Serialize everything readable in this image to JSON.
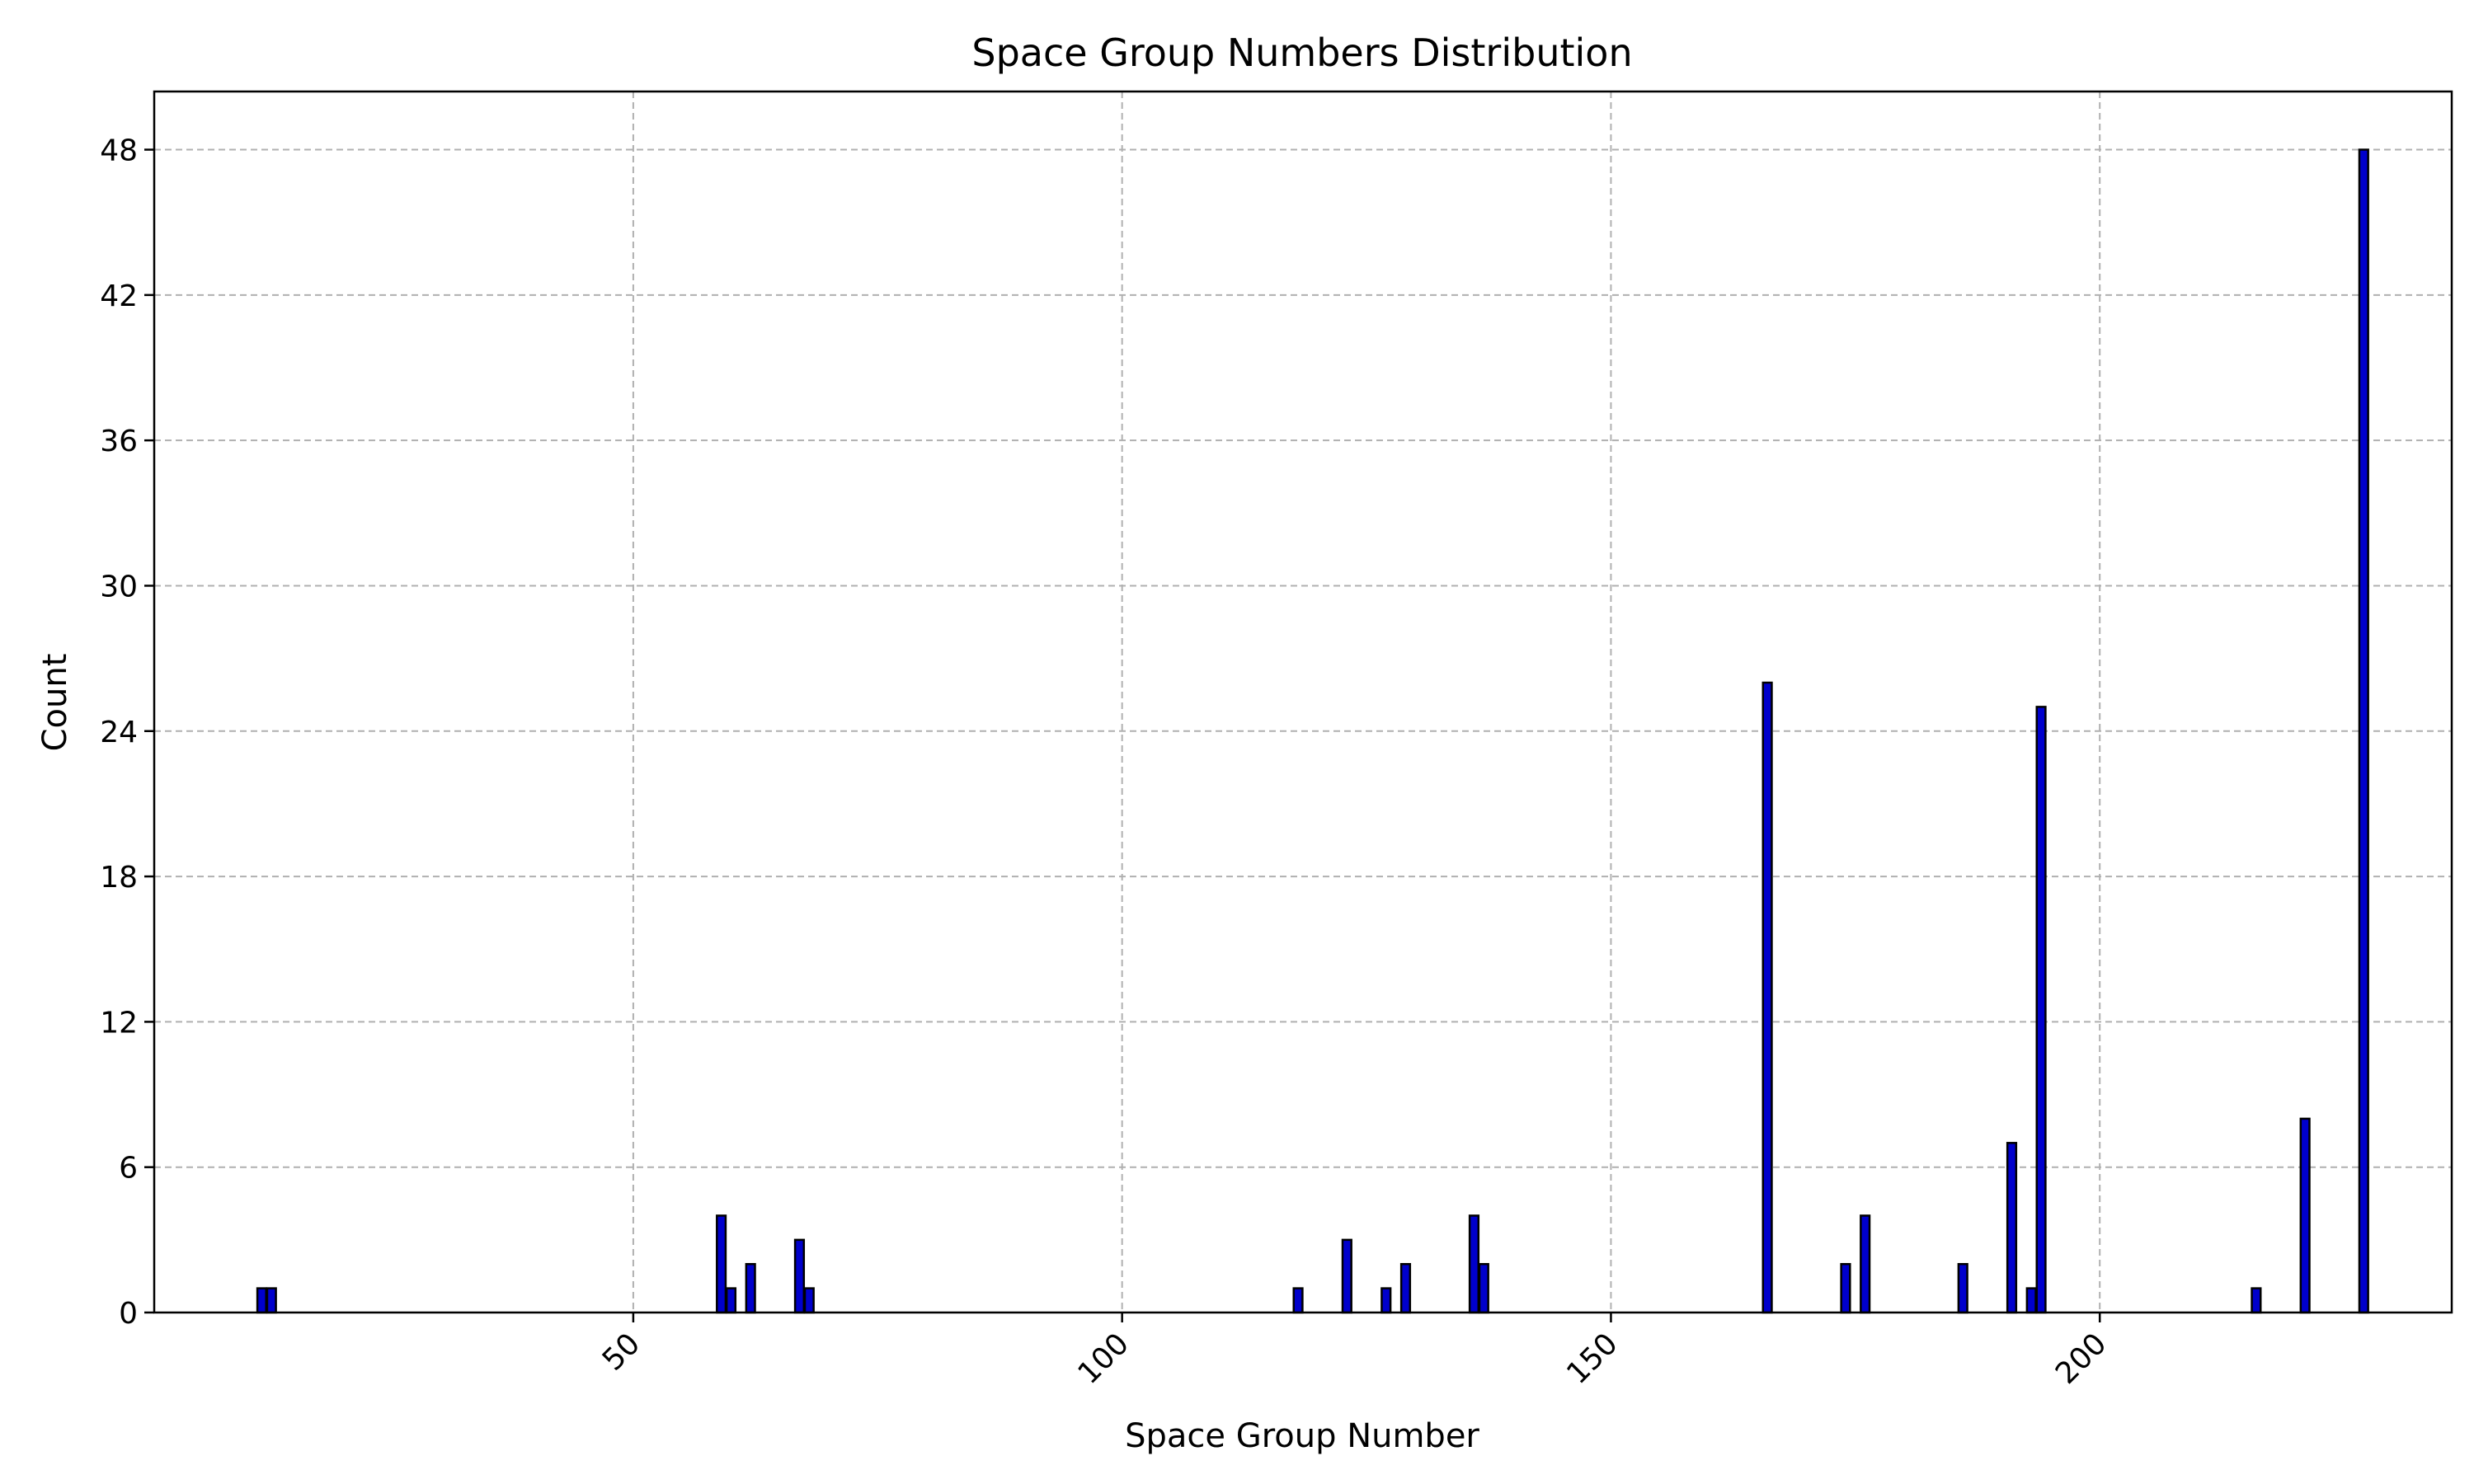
{
  "chart_data": {
    "type": "bar",
    "title": "Space Group Numbers Distribution",
    "xlabel": "Space Group Number",
    "ylabel": "Count",
    "xlim": [
      1,
      236
    ],
    "ylim": [
      0,
      50.4
    ],
    "xticks": [
      50,
      100,
      150,
      200
    ],
    "yticks": [
      0,
      6,
      12,
      18,
      24,
      30,
      36,
      42,
      48
    ],
    "grid": true,
    "bar_color": "#0000cc",
    "edge_color": "#000000",
    "x": [
      12,
      13,
      59,
      60,
      62,
      67,
      68,
      118,
      123,
      127,
      129,
      136,
      137,
      166,
      174,
      176,
      186,
      191,
      193,
      194,
      216,
      221,
      227
    ],
    "values": [
      1,
      1,
      4,
      1,
      2,
      3,
      1,
      1,
      3,
      1,
      2,
      4,
      2,
      26,
      2,
      4,
      2,
      7,
      1,
      25,
      1,
      8,
      48
    ]
  }
}
